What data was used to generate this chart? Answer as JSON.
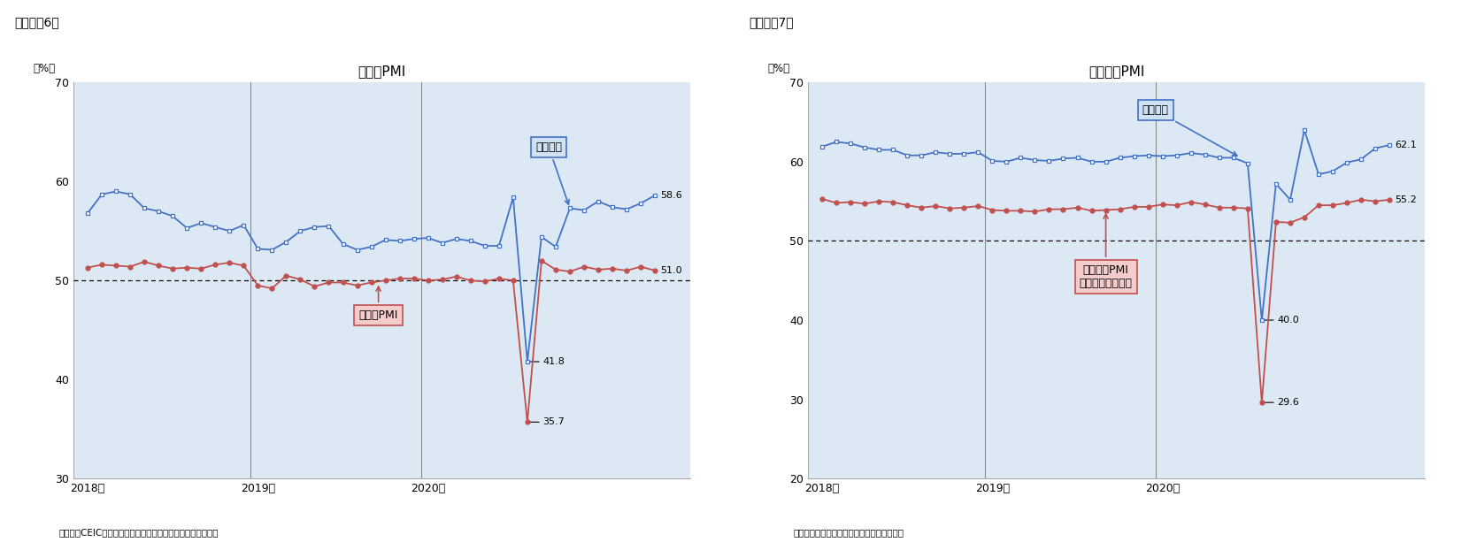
{
  "fig6_title": "製造業PMI",
  "fig7_title": "非製造業PMI",
  "fig6_label": "（図表－6）",
  "fig7_label": "（図表－7）",
  "fig6_source": "（資料）CEIC（出所は中国国家統計局）のデータを元に作成",
  "fig7_source": "（資料）中国国家統計局のデータを元に作成",
  "ylabel": "（%）",
  "fig6_ylim": [
    30,
    70
  ],
  "fig7_ylim": [
    20,
    70
  ],
  "fig6_yticks": [
    30,
    40,
    50,
    60,
    70
  ],
  "fig7_yticks": [
    20,
    30,
    40,
    50,
    60,
    70
  ],
  "bg_color": "#dce9f5",
  "line1_color": "#4472c4",
  "line2_color": "#c0504d",
  "fig6_blue_y": [
    56.8,
    58.7,
    59.0,
    58.7,
    57.3,
    57.0,
    56.5,
    55.3,
    55.8,
    55.4,
    55.0,
    55.6,
    53.2,
    53.1,
    53.9,
    55.0,
    55.4,
    55.5,
    53.7,
    53.1,
    53.4,
    54.1,
    54.0,
    54.2,
    54.3,
    53.8,
    54.2,
    54.0,
    53.5,
    53.5,
    58.4,
    41.8,
    54.4,
    53.4,
    57.3,
    57.1,
    58.0,
    57.4,
    57.2,
    57.8,
    58.6
  ],
  "fig6_red_y": [
    51.3,
    51.6,
    51.5,
    51.4,
    51.9,
    51.5,
    51.2,
    51.3,
    51.2,
    51.6,
    51.8,
    51.5,
    49.5,
    49.2,
    50.5,
    50.1,
    49.4,
    49.8,
    49.8,
    49.5,
    49.8,
    50.0,
    50.2,
    50.2,
    50.0,
    50.1,
    50.4,
    50.0,
    49.9,
    50.2,
    50.0,
    35.7,
    52.0,
    51.1,
    50.9,
    51.4,
    51.1,
    51.2,
    51.0,
    51.4,
    51.0
  ],
  "fig7_blue_y": [
    61.9,
    62.5,
    62.3,
    61.8,
    61.5,
    61.5,
    60.8,
    60.8,
    61.2,
    61.0,
    61.0,
    61.2,
    60.1,
    60.0,
    60.5,
    60.2,
    60.1,
    60.4,
    60.5,
    60.0,
    60.0,
    60.5,
    60.7,
    60.8,
    60.7,
    60.8,
    61.1,
    60.9,
    60.5,
    60.5,
    59.8,
    40.0,
    57.2,
    55.2,
    64.0,
    58.4,
    58.8,
    59.9,
    60.3,
    61.7,
    62.1
  ],
  "fig7_red_y": [
    55.3,
    54.8,
    54.9,
    54.7,
    55.0,
    54.9,
    54.5,
    54.2,
    54.4,
    54.1,
    54.2,
    54.4,
    53.9,
    53.8,
    53.8,
    53.7,
    54.0,
    54.0,
    54.2,
    53.8,
    53.9,
    54.0,
    54.3,
    54.3,
    54.6,
    54.5,
    54.9,
    54.6,
    54.2,
    54.2,
    54.1,
    29.6,
    52.4,
    52.3,
    53.0,
    54.5,
    54.5,
    54.8,
    55.2,
    55.0,
    55.2
  ],
  "fig6_blue_end_label": "58.6",
  "fig6_red_end_label": "51.0",
  "fig6_blue_min_label": "41.8",
  "fig6_red_min_label": "35.7",
  "fig7_blue_end_label": "62.1",
  "fig7_red_end_label": "55.2",
  "fig7_blue_min_label": "40.0",
  "fig7_red_min_label": "29.6",
  "anno_blue6_text": "予想指数",
  "anno_red6_text": "製造業PMI",
  "anno_blue7_text": "予想指数",
  "anno_red7_text": "非製造業PMI\n（商務活動指数）"
}
